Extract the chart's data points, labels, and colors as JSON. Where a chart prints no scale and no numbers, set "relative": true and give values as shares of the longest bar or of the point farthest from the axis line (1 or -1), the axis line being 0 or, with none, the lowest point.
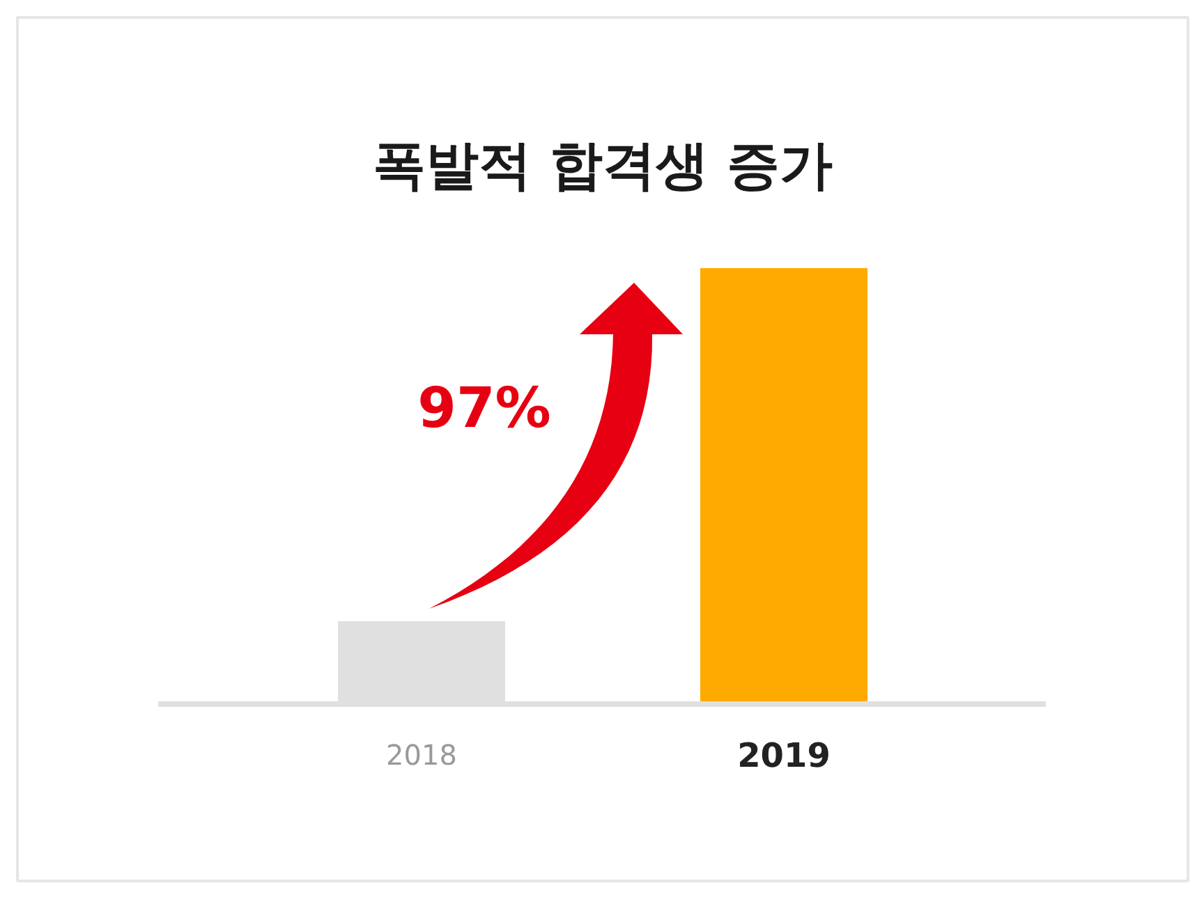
{
  "chart_data": {
    "type": "bar",
    "title": "폭발적 합격생 증가",
    "categories": [
      "2018",
      "2019"
    ],
    "values": [
      0.19,
      1
    ],
    "colors": [
      "#e0e0e0",
      "#ffaa00"
    ],
    "relative": true,
    "annotations": [
      "97%"
    ]
  }
}
